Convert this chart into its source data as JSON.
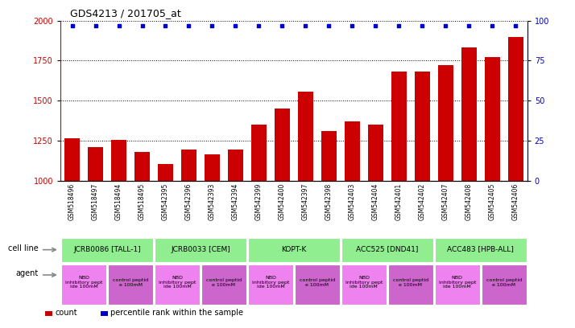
{
  "title": "GDS4213 / 201705_at",
  "samples": [
    "GSM518496",
    "GSM518497",
    "GSM518494",
    "GSM518495",
    "GSM542395",
    "GSM542396",
    "GSM542393",
    "GSM542394",
    "GSM542399",
    "GSM542400",
    "GSM542397",
    "GSM542398",
    "GSM542403",
    "GSM542404",
    "GSM542401",
    "GSM542402",
    "GSM542407",
    "GSM542408",
    "GSM542405",
    "GSM542406"
  ],
  "counts": [
    1265,
    1210,
    1255,
    1180,
    1105,
    1195,
    1165,
    1195,
    1350,
    1450,
    1555,
    1310,
    1370,
    1350,
    1680,
    1680,
    1720,
    1830,
    1770,
    1895
  ],
  "percentile": [
    97,
    97,
    97,
    97,
    97,
    97,
    97,
    97,
    97,
    97,
    97,
    97,
    97,
    97,
    97,
    97,
    97,
    97,
    97,
    97
  ],
  "ylim_left": [
    1000,
    2000
  ],
  "ylim_right": [
    0,
    100
  ],
  "yticks_left": [
    1000,
    1250,
    1500,
    1750,
    2000
  ],
  "yticks_right": [
    0,
    25,
    50,
    75,
    100
  ],
  "bar_color": "#cc0000",
  "dot_color": "#0000cc",
  "cell_lines": [
    {
      "label": "JCRB0086 [TALL-1]",
      "start": 0,
      "end": 4,
      "color": "#90ee90"
    },
    {
      "label": "JCRB0033 [CEM]",
      "start": 4,
      "end": 8,
      "color": "#90ee90"
    },
    {
      "label": "KOPT-K",
      "start": 8,
      "end": 12,
      "color": "#90ee90"
    },
    {
      "label": "ACC525 [DND41]",
      "start": 12,
      "end": 16,
      "color": "#90ee90"
    },
    {
      "label": "ACC483 [HPB-ALL]",
      "start": 16,
      "end": 20,
      "color": "#90ee90"
    }
  ],
  "agents": [
    {
      "label": "NBD\ninhibitory pept\nide 100mM",
      "start": 0,
      "end": 2,
      "color": "#ee82ee"
    },
    {
      "label": "control peptid\ne 100mM",
      "start": 2,
      "end": 4,
      "color": "#cc66cc"
    },
    {
      "label": "NBD\ninhibitory pept\nide 100mM",
      "start": 4,
      "end": 6,
      "color": "#ee82ee"
    },
    {
      "label": "control peptid\ne 100mM",
      "start": 6,
      "end": 8,
      "color": "#cc66cc"
    },
    {
      "label": "NBD\ninhibitory pept\nide 100mM",
      "start": 8,
      "end": 10,
      "color": "#ee82ee"
    },
    {
      "label": "control peptid\ne 100mM",
      "start": 10,
      "end": 12,
      "color": "#cc66cc"
    },
    {
      "label": "NBD\ninhibitory pept\nide 100mM",
      "start": 12,
      "end": 14,
      "color": "#ee82ee"
    },
    {
      "label": "control peptid\ne 100mM",
      "start": 14,
      "end": 16,
      "color": "#cc66cc"
    },
    {
      "label": "NBD\ninhibitory pept\nide 100mM",
      "start": 16,
      "end": 18,
      "color": "#ee82ee"
    },
    {
      "label": "control peptid\ne 100mM",
      "start": 18,
      "end": 20,
      "color": "#cc66cc"
    }
  ],
  "cell_line_row_label": "cell line",
  "agent_row_label": "agent",
  "legend_count_color": "#cc0000",
  "legend_pct_color": "#0000cc",
  "legend_count_label": "count",
  "legend_pct_label": "percentile rank within the sample",
  "background_color": "#ffffff",
  "tick_area_bg": "#cccccc",
  "arrow_color": "#888888"
}
